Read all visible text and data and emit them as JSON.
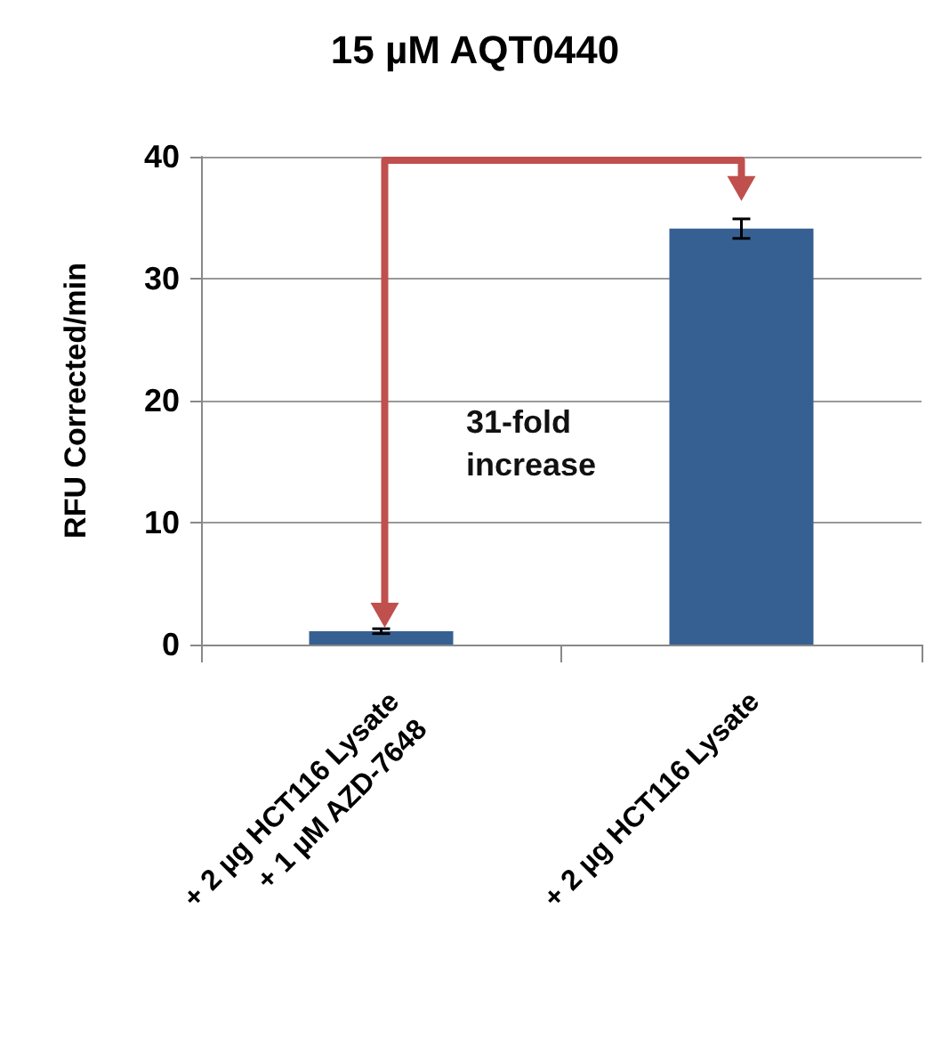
{
  "chart_data": {
    "type": "bar",
    "title": "15 µM AQT0440",
    "ylabel": "RFU Corrected/min",
    "categories": [
      "+ 2 µg HCT116 Lysate\n+ 1 µM AZD-7648",
      "+ 2 µg HCT116 Lysate"
    ],
    "values": [
      1.1,
      34.1
    ],
    "errors": [
      0.2,
      0.8
    ],
    "color": "#376092",
    "ylim": [
      0,
      40
    ],
    "yticks": [
      0,
      10,
      20,
      30,
      40
    ],
    "grid": "y",
    "annotations": [
      "31-fold increase"
    ]
  }
}
